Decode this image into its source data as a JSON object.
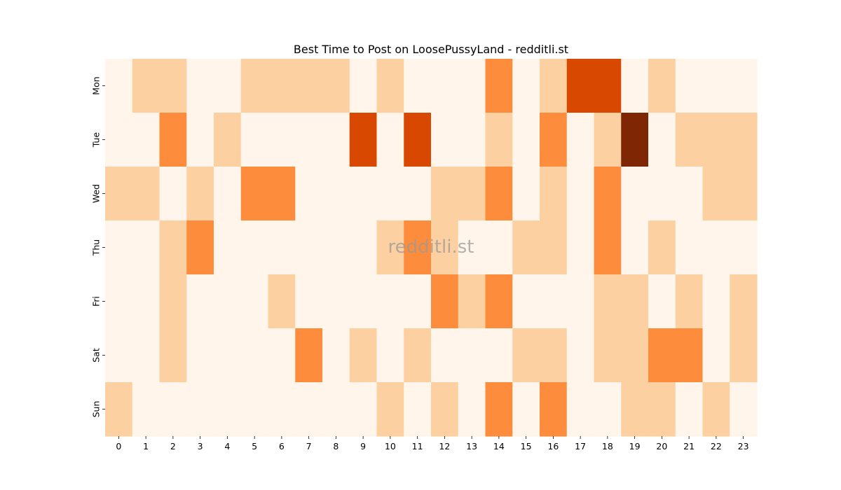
{
  "chart_data": {
    "type": "heatmap",
    "title": "Best Time to Post on LoosePussyLand - redditli.st",
    "watermark": "redditli.st",
    "xlabel": "",
    "ylabel": "",
    "x_categories": [
      "0",
      "1",
      "2",
      "3",
      "4",
      "5",
      "6",
      "7",
      "8",
      "9",
      "10",
      "11",
      "12",
      "13",
      "14",
      "15",
      "16",
      "17",
      "18",
      "19",
      "20",
      "21",
      "22",
      "23"
    ],
    "y_categories": [
      "Mon",
      "Tue",
      "Wed",
      "Thu",
      "Fri",
      "Sat",
      "Sun"
    ],
    "value_range": [
      0,
      4
    ],
    "colormap": [
      "#fff5eb",
      "#fdd0a2",
      "#fd8d3c",
      "#d94801",
      "#7f2704"
    ],
    "values": [
      [
        0,
        1,
        1,
        0,
        0,
        1,
        1,
        1,
        1,
        0,
        1,
        0,
        0,
        0,
        2,
        0,
        1,
        3,
        3,
        0,
        1,
        0,
        0,
        0
      ],
      [
        0,
        0,
        2,
        0,
        1,
        0,
        0,
        0,
        0,
        3,
        0,
        3,
        0,
        0,
        1,
        0,
        2,
        0,
        1,
        4,
        0,
        1,
        1,
        1
      ],
      [
        1,
        1,
        0,
        1,
        0,
        2,
        2,
        0,
        0,
        0,
        0,
        0,
        1,
        1,
        2,
        0,
        1,
        0,
        2,
        0,
        0,
        0,
        1,
        1
      ],
      [
        0,
        0,
        1,
        2,
        0,
        0,
        0,
        0,
        0,
        0,
        1,
        2,
        1,
        0,
        0,
        1,
        1,
        0,
        2,
        0,
        1,
        0,
        0,
        0
      ],
      [
        0,
        0,
        1,
        0,
        0,
        0,
        1,
        0,
        0,
        0,
        0,
        0,
        2,
        1,
        2,
        0,
        0,
        0,
        1,
        1,
        0,
        1,
        0,
        1
      ],
      [
        0,
        0,
        1,
        0,
        0,
        0,
        0,
        2,
        0,
        1,
        0,
        1,
        0,
        0,
        0,
        1,
        1,
        0,
        1,
        1,
        2,
        2,
        0,
        1
      ],
      [
        1,
        0,
        0,
        0,
        0,
        0,
        0,
        0,
        0,
        0,
        1,
        0,
        1,
        0,
        2,
        0,
        2,
        0,
        0,
        1,
        1,
        0,
        1,
        0
      ]
    ]
  }
}
